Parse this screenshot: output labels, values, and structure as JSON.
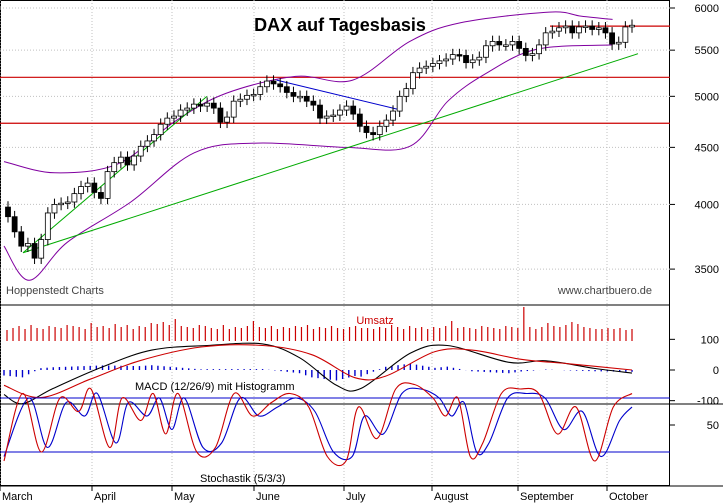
{
  "chart_data": [
    {
      "panel": "price",
      "type": "candlestick",
      "title": "DAX auf Tagesbasis",
      "y_scale": "log",
      "ylim": [
        3250,
        6100
      ],
      "y_ticks": [
        "6000",
        "5500",
        "5000",
        "4500",
        "4000",
        "3500"
      ],
      "x_ticks": [
        "March",
        "April",
        "May",
        "June",
        "July",
        "August",
        "September",
        "October"
      ],
      "source_left": "Hoppenstedt Charts",
      "source_right": "www.chartbuero.de",
      "close_series": [
        [
          "Mar-03",
          3900
        ],
        [
          "Mar-05",
          3780
        ],
        [
          "Mar-07",
          3670
        ],
        [
          "Mar-10",
          3690
        ],
        [
          "Mar-12",
          3580
        ],
        [
          "Mar-14",
          3720
        ],
        [
          "Mar-17",
          3930
        ],
        [
          "Mar-19",
          4000
        ],
        [
          "Mar-21",
          4010
        ],
        [
          "Mar-24",
          4020
        ],
        [
          "Mar-26",
          4090
        ],
        [
          "Mar-28",
          4150
        ],
        [
          "Mar-31",
          4180
        ],
        [
          "Apr-02",
          4100
        ],
        [
          "Apr-04",
          4050
        ],
        [
          "Apr-07",
          4280
        ],
        [
          "Apr-09",
          4360
        ],
        [
          "Apr-11",
          4410
        ],
        [
          "Apr-14",
          4340
        ],
        [
          "Apr-16",
          4420
        ],
        [
          "Apr-18",
          4510
        ],
        [
          "Apr-22",
          4560
        ],
        [
          "Apr-24",
          4620
        ],
        [
          "Apr-28",
          4720
        ],
        [
          "Apr-30",
          4780
        ],
        [
          "May-02",
          4800
        ],
        [
          "May-05",
          4860
        ],
        [
          "May-07",
          4880
        ],
        [
          "May-09",
          4920
        ],
        [
          "May-12",
          4900
        ],
        [
          "May-14",
          4930
        ],
        [
          "May-16",
          4880
        ],
        [
          "May-19",
          4740
        ],
        [
          "May-21",
          4790
        ],
        [
          "May-23",
          4950
        ],
        [
          "May-26",
          4970
        ],
        [
          "May-28",
          5010
        ],
        [
          "May-30",
          5020
        ],
        [
          "Jun-02",
          5100
        ],
        [
          "Jun-04",
          5160
        ],
        [
          "Jun-06",
          5130
        ],
        [
          "Jun-09",
          5100
        ],
        [
          "Jun-11",
          5040
        ],
        [
          "Jun-13",
          5000
        ],
        [
          "Jun-16",
          5000
        ],
        [
          "Jun-18",
          4950
        ],
        [
          "Jun-20",
          4910
        ],
        [
          "Jun-23",
          4780
        ],
        [
          "Jun-25",
          4800
        ],
        [
          "Jun-27",
          4810
        ],
        [
          "Jun-30",
          4860
        ],
        [
          "Jul-02",
          4900
        ],
        [
          "Jul-04",
          4820
        ],
        [
          "Jul-07",
          4700
        ],
        [
          "Jul-09",
          4640
        ],
        [
          "Jul-11",
          4620
        ],
        [
          "Jul-14",
          4700
        ],
        [
          "Jul-16",
          4760
        ],
        [
          "Jul-18",
          4850
        ],
        [
          "Jul-21",
          5000
        ],
        [
          "Jul-23",
          5080
        ],
        [
          "Jul-25",
          5250
        ],
        [
          "Jul-28",
          5300
        ],
        [
          "Jul-30",
          5320
        ],
        [
          "Aug-01",
          5350
        ],
        [
          "Aug-04",
          5380
        ],
        [
          "Aug-06",
          5400
        ],
        [
          "Aug-08",
          5450
        ],
        [
          "Aug-11",
          5440
        ],
        [
          "Aug-13",
          5360
        ],
        [
          "Aug-15",
          5390
        ],
        [
          "Aug-18",
          5420
        ],
        [
          "Aug-20",
          5550
        ],
        [
          "Aug-22",
          5600
        ],
        [
          "Aug-25",
          5560
        ],
        [
          "Aug-27",
          5560
        ],
        [
          "Aug-29",
          5600
        ],
        [
          "Sep-01",
          5520
        ],
        [
          "Sep-03",
          5440
        ],
        [
          "Sep-05",
          5460
        ],
        [
          "Sep-08",
          5560
        ],
        [
          "Sep-10",
          5700
        ],
        [
          "Sep-12",
          5720
        ],
        [
          "Sep-15",
          5760
        ],
        [
          "Sep-17",
          5780
        ],
        [
          "Sep-19",
          5700
        ],
        [
          "Sep-22",
          5770
        ],
        [
          "Sep-24",
          5780
        ],
        [
          "Sep-26",
          5740
        ],
        [
          "Sep-29",
          5760
        ],
        [
          "Oct-01",
          5700
        ],
        [
          "Oct-03",
          5570
        ],
        [
          "Oct-06",
          5590
        ],
        [
          "Oct-08",
          5770
        ],
        [
          "Oct-10",
          5790
        ]
      ],
      "bollinger": {
        "upper": [
          [
            0,
            4370
          ],
          [
            8,
            4270
          ],
          [
            18,
            4350
          ],
          [
            27,
            4750
          ],
          [
            35,
            5030
          ],
          [
            46,
            5210
          ],
          [
            55,
            5170
          ],
          [
            64,
            5600
          ],
          [
            72,
            5820
          ],
          [
            86,
            5950
          ],
          [
            91,
            5900
          ],
          [
            96,
            5860
          ]
        ],
        "lower": [
          [
            0,
            3670
          ],
          [
            4,
            3420
          ],
          [
            10,
            3700
          ],
          [
            20,
            4020
          ],
          [
            30,
            4450
          ],
          [
            40,
            4540
          ],
          [
            54,
            4500
          ],
          [
            64,
            4510
          ],
          [
            70,
            4950
          ],
          [
            76,
            5240
          ],
          [
            84,
            5510
          ],
          [
            96,
            5560
          ]
        ]
      },
      "horizontal_lines": [
        5780,
        5200,
        4730
      ],
      "trendlines": [
        {
          "color": "#00aa00",
          "from": [
            3,
            3620
          ],
          "to": [
            100,
            5460
          ]
        },
        {
          "color": "#00aa00",
          "from": [
            3,
            3620
          ],
          "to": [
            32,
            5000
          ]
        },
        {
          "color": "#0000cc",
          "from": [
            43,
            5170
          ],
          "to": [
            62,
            4870
          ]
        }
      ]
    },
    {
      "panel": "volume",
      "type": "bar",
      "label": "Umsatz",
      "values": [
        11,
        13,
        15,
        12,
        16,
        13,
        12,
        15,
        14,
        13,
        16,
        15,
        14,
        12,
        18,
        14,
        15,
        13,
        17,
        14,
        16,
        12,
        15,
        14,
        18,
        17,
        19,
        16,
        22,
        15,
        14,
        13,
        16,
        15,
        13,
        12,
        16,
        12,
        14,
        13,
        15,
        20,
        14,
        13,
        15,
        12,
        14,
        13,
        15,
        14,
        16,
        12,
        14,
        13,
        15,
        13,
        12,
        14,
        15,
        13,
        13,
        12,
        14,
        13,
        16,
        14,
        12,
        15,
        13,
        14,
        12,
        14,
        13,
        15,
        20,
        13,
        14,
        13,
        12,
        15,
        14,
        13,
        12,
        15,
        14,
        13,
        34,
        14,
        12,
        14,
        18,
        15,
        14,
        16,
        19,
        17,
        14,
        13,
        12,
        12,
        13,
        12,
        13,
        11,
        12
      ]
    },
    {
      "panel": "macd",
      "type": "line",
      "label": "MACD (12/26/9) mit Histogramm",
      "y_ticks": [
        "100",
        "0",
        "-100"
      ],
      "ylim": [
        -150,
        150
      ],
      "macd": [
        [
          0,
          -80
        ],
        [
          3,
          -110
        ],
        [
          8,
          -60
        ],
        [
          16,
          10
        ],
        [
          24,
          65
        ],
        [
          33,
          80
        ],
        [
          42,
          85
        ],
        [
          48,
          40
        ],
        [
          54,
          -50
        ],
        [
          58,
          -60
        ],
        [
          66,
          55
        ],
        [
          72,
          80
        ],
        [
          82,
          25
        ],
        [
          88,
          30
        ],
        [
          96,
          5
        ],
        [
          102,
          -10
        ]
      ],
      "signal": [
        [
          0,
          -50
        ],
        [
          6,
          -90
        ],
        [
          14,
          -30
        ],
        [
          22,
          30
        ],
        [
          32,
          75
        ],
        [
          42,
          80
        ],
        [
          50,
          50
        ],
        [
          57,
          -25
        ],
        [
          62,
          -20
        ],
        [
          70,
          60
        ],
        [
          76,
          65
        ],
        [
          84,
          35
        ],
        [
          92,
          20
        ],
        [
          102,
          0
        ]
      ]
    },
    {
      "panel": "stochastic",
      "type": "line",
      "label": "Stochastik (5/3/3)",
      "y_ticks": [
        "50"
      ],
      "ylim": [
        0,
        100
      ],
      "reference_lines": [
        80,
        20
      ],
      "k_red": [
        [
          0,
          10
        ],
        [
          3,
          85
        ],
        [
          6,
          20
        ],
        [
          9,
          80
        ],
        [
          12,
          65
        ],
        [
          14,
          90
        ],
        [
          17,
          25
        ],
        [
          19,
          80
        ],
        [
          22,
          55
        ],
        [
          24,
          85
        ],
        [
          26,
          40
        ],
        [
          28,
          85
        ],
        [
          31,
          20
        ],
        [
          34,
          25
        ],
        [
          37,
          85
        ],
        [
          40,
          60
        ],
        [
          43,
          75
        ],
        [
          46,
          85
        ],
        [
          49,
          70
        ],
        [
          52,
          15
        ],
        [
          55,
          10
        ],
        [
          57,
          70
        ],
        [
          60,
          35
        ],
        [
          63,
          90
        ],
        [
          66,
          95
        ],
        [
          69,
          80
        ],
        [
          71,
          60
        ],
        [
          73,
          80
        ],
        [
          75,
          15
        ],
        [
          77,
          30
        ],
        [
          80,
          85
        ],
        [
          83,
          90
        ],
        [
          86,
          85
        ],
        [
          89,
          40
        ],
        [
          92,
          70
        ],
        [
          95,
          10
        ],
        [
          98,
          70
        ],
        [
          101,
          85
        ]
      ],
      "d_blue": [
        [
          0,
          15
        ],
        [
          4,
          80
        ],
        [
          7,
          25
        ],
        [
          10,
          75
        ],
        [
          13,
          60
        ],
        [
          15,
          85
        ],
        [
          18,
          30
        ],
        [
          20,
          75
        ],
        [
          23,
          60
        ],
        [
          25,
          80
        ],
        [
          27,
          45
        ],
        [
          29,
          80
        ],
        [
          32,
          25
        ],
        [
          35,
          30
        ],
        [
          38,
          80
        ],
        [
          41,
          60
        ],
        [
          44,
          70
        ],
        [
          47,
          80
        ],
        [
          50,
          65
        ],
        [
          53,
          20
        ],
        [
          56,
          15
        ],
        [
          58,
          60
        ],
        [
          61,
          40
        ],
        [
          64,
          85
        ],
        [
          67,
          90
        ],
        [
          70,
          80
        ],
        [
          72,
          60
        ],
        [
          74,
          75
        ],
        [
          76,
          20
        ],
        [
          78,
          30
        ],
        [
          81,
          80
        ],
        [
          84,
          85
        ],
        [
          87,
          80
        ],
        [
          90,
          45
        ],
        [
          93,
          65
        ],
        [
          96,
          15
        ],
        [
          99,
          55
        ],
        [
          101,
          70
        ]
      ]
    }
  ]
}
